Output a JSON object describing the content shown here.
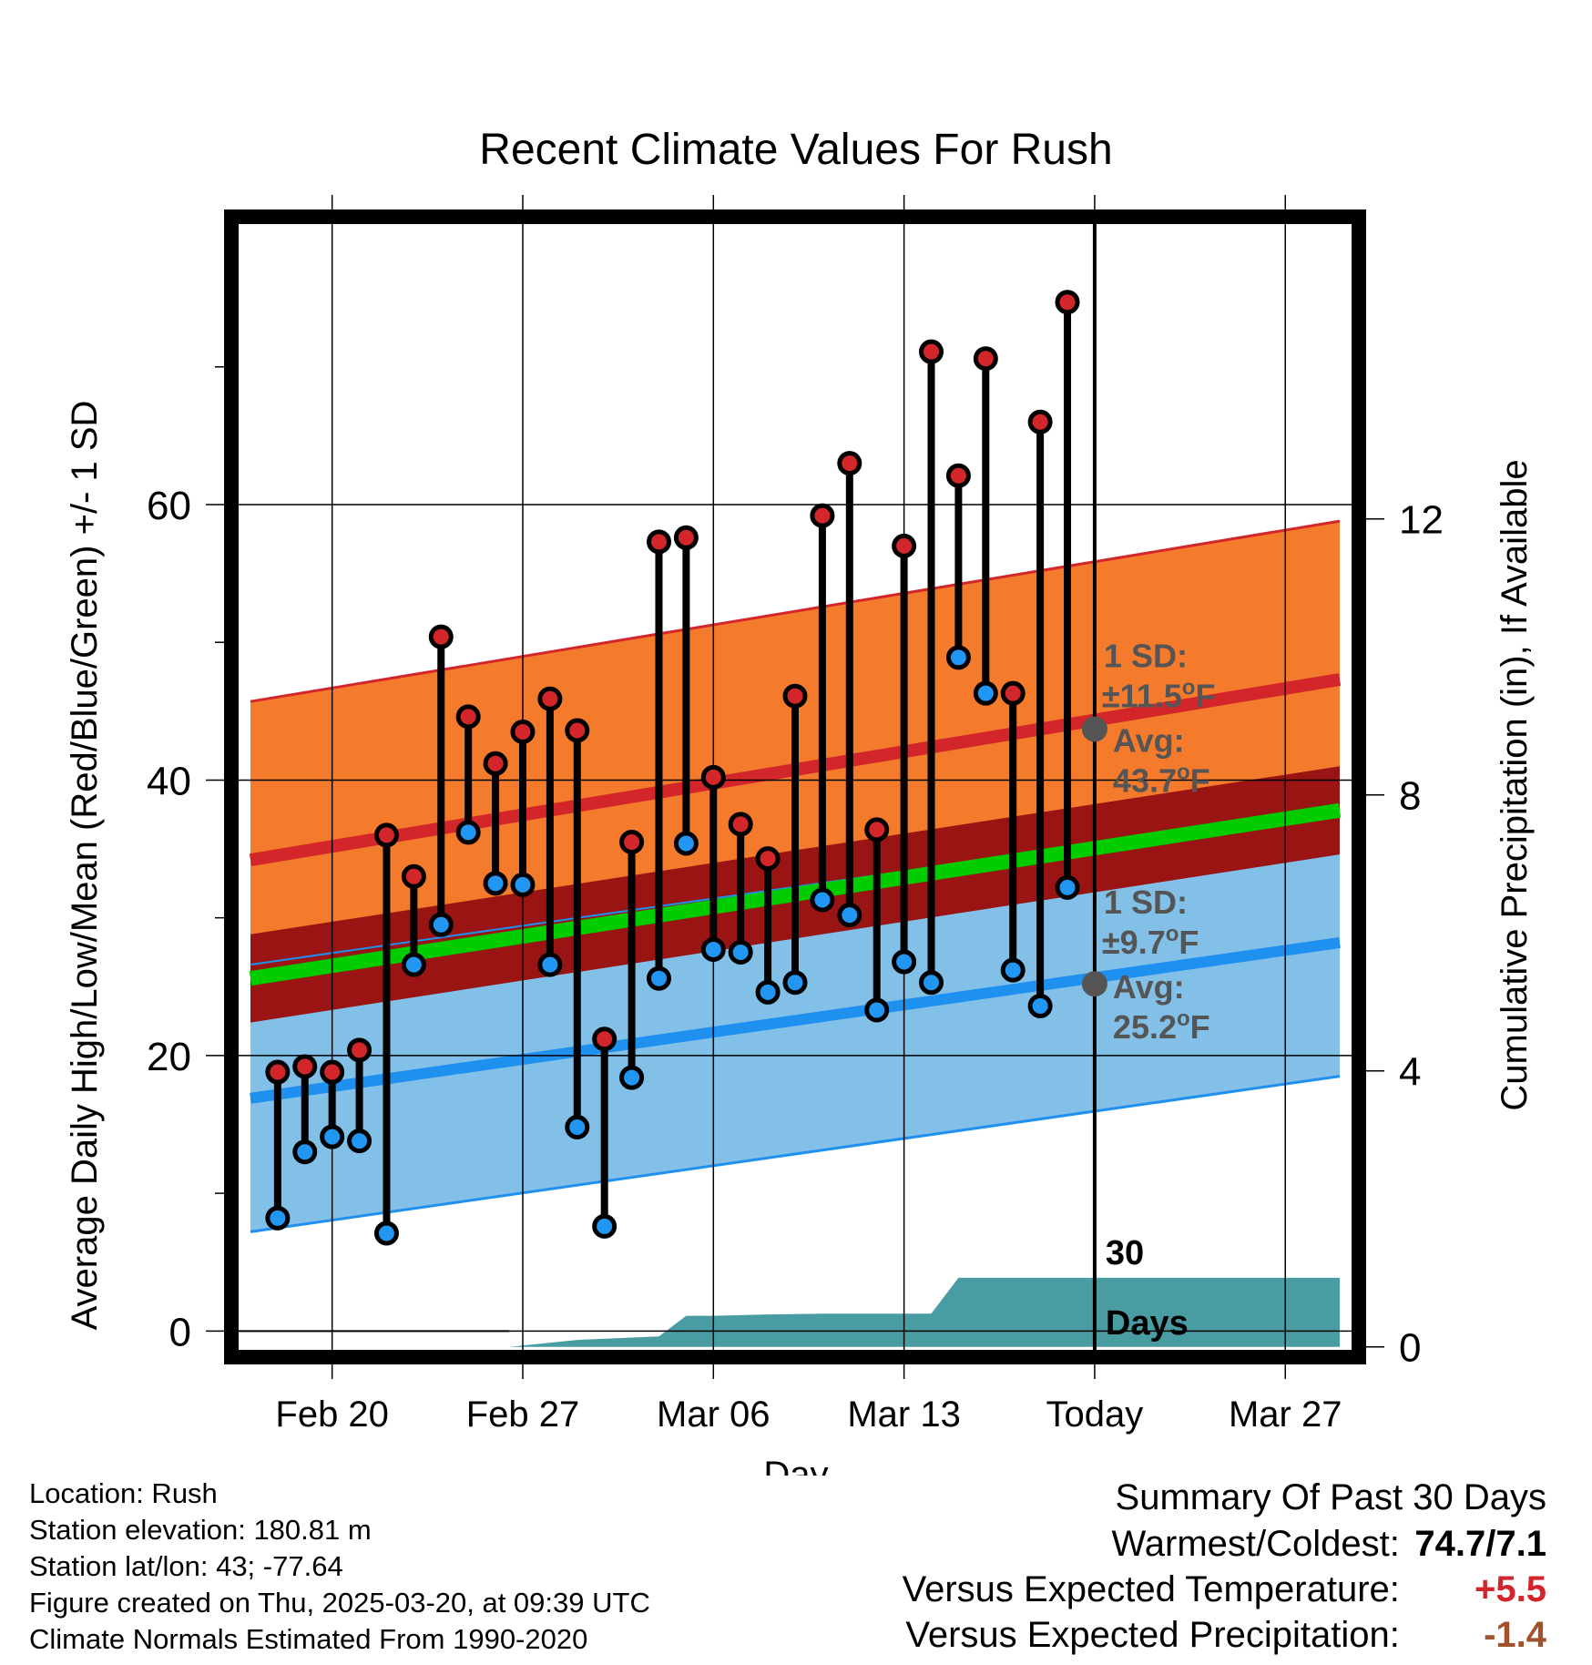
{
  "chart_data": {
    "type": "range",
    "title": "Recent Climate Values For Rush",
    "xlabel": "Day",
    "ylabel": "Average Daily High/Low/Mean (Red/Blue/Green) +/- 1 SD",
    "y2label": "Cumulative Precipitation (in), If Available",
    "xlim": [
      -3.5,
      37.5
    ],
    "ylim": [
      -1.5,
      80.5
    ],
    "y2lim": [
      -0.07,
      16.3
    ],
    "x_ticks": [
      {
        "x": 0,
        "label": "Feb 20"
      },
      {
        "x": 7,
        "label": "Feb 27"
      },
      {
        "x": 14,
        "label": "Mar 06"
      },
      {
        "x": 21,
        "label": "Mar 13"
      },
      {
        "x": 28,
        "label": "Today"
      },
      {
        "x": 35,
        "label": "Mar 27"
      }
    ],
    "y_ticks": [
      0,
      20,
      40,
      60
    ],
    "y_minor_ticks": [
      10,
      30,
      50,
      70
    ],
    "y2_ticks": [
      0,
      4,
      8,
      12
    ],
    "today_x": 28,
    "today_label": "30 Days",
    "colors": {
      "high_band": "#F47B2C",
      "high_line": "#D3262B",
      "low_band": "#82C0E8",
      "low_line": "#1E90F0",
      "mean_band": "#9A1414",
      "mean_line": "#00CC00",
      "precip": "#4A9CA3",
      "high_dot": "#D3262B",
      "low_dot": "#2196F3",
      "stat_dot": "#555555",
      "summary_warm": "#D3262B",
      "summary_precip": "#A0522D"
    },
    "normals": {
      "x": [
        -3,
        37
      ],
      "high_avg": [
        34.2,
        47.3
      ],
      "high_sd": 11.5,
      "low_avg": [
        16.9,
        28.2
      ],
      "low_sd": 9.7,
      "mean_avg": [
        25.6,
        37.8
      ],
      "mean_sd": 3.2
    },
    "high_stat": {
      "label1": "1 SD:",
      "label2": "±11.5",
      "unit": "F",
      "label3": "Avg:",
      "label4": "43.7",
      "value": 43.7,
      "sd": 11.5
    },
    "low_stat": {
      "label1": "1 SD:",
      "label2": "±9.7",
      "unit": "F",
      "label3": "Avg:",
      "label4": "25.2",
      "value": 25.2,
      "sd": 9.7
    },
    "degree_symbol": "o",
    "days": [
      {
        "x": -2,
        "high": 18.8,
        "low": 8.2
      },
      {
        "x": -1,
        "high": 19.2,
        "low": 13.0
      },
      {
        "x": 0,
        "high": 18.8,
        "low": 14.1
      },
      {
        "x": 1,
        "high": 20.4,
        "low": 13.8
      },
      {
        "x": 2,
        "high": 36.0,
        "low": 7.1
      },
      {
        "x": 3,
        "high": 33.0,
        "low": 26.6
      },
      {
        "x": 4,
        "high": 50.4,
        "low": 29.5
      },
      {
        "x": 5,
        "high": 44.6,
        "low": 36.2
      },
      {
        "x": 6,
        "high": 41.2,
        "low": 32.5
      },
      {
        "x": 7,
        "high": 43.5,
        "low": 32.4
      },
      {
        "x": 8,
        "high": 45.9,
        "low": 26.6
      },
      {
        "x": 9,
        "high": 43.6,
        "low": 14.8
      },
      {
        "x": 10,
        "high": 21.2,
        "low": 7.6
      },
      {
        "x": 11,
        "high": 35.5,
        "low": 18.4
      },
      {
        "x": 12,
        "high": 57.3,
        "low": 25.6
      },
      {
        "x": 13,
        "high": 57.6,
        "low": 35.4
      },
      {
        "x": 14,
        "high": 40.2,
        "low": 27.7
      },
      {
        "x": 15,
        "high": 36.8,
        "low": 27.5
      },
      {
        "x": 16,
        "high": 34.3,
        "low": 24.6
      },
      {
        "x": 17,
        "high": 46.1,
        "low": 25.3
      },
      {
        "x": 18,
        "high": 59.2,
        "low": 31.3
      },
      {
        "x": 19,
        "high": 63.0,
        "low": 30.2
      },
      {
        "x": 20,
        "high": 36.4,
        "low": 23.3
      },
      {
        "x": 21,
        "high": 57.0,
        "low": 26.8
      },
      {
        "x": 22,
        "high": 71.1,
        "low": 25.3
      },
      {
        "x": 23,
        "high": 62.1,
        "low": 48.9
      },
      {
        "x": 24,
        "high": 70.6,
        "low": 46.3
      },
      {
        "x": 25,
        "high": 46.3,
        "low": 26.2
      },
      {
        "x": 26,
        "high": 66.0,
        "low": 23.6
      },
      {
        "x": 27,
        "high": 74.7,
        "low": 32.2
      }
    ],
    "precip": {
      "x": [
        6.5,
        9,
        12,
        13,
        14,
        16,
        18,
        22,
        23,
        37
      ],
      "values": [
        0.0,
        0.1,
        0.15,
        0.45,
        0.45,
        0.47,
        0.48,
        0.48,
        1.0,
        1.0
      ]
    }
  },
  "footer": {
    "location": "Location: Rush",
    "elevation": "Station elevation: 180.81 m",
    "latlon": "Station lat/lon: 43; -77.64",
    "created": "Figure created on Thu, 2025-03-20, at 09:39 UTC",
    "normals": "Climate Normals Estimated From 1990-2020"
  },
  "summary": {
    "heading": "Summary Of Past 30 Days",
    "warm_cold_label": "Warmest/Coldest:",
    "warm_cold_value": "74.7/7.1",
    "temp_label": "Versus Expected Temperature:",
    "temp_value": "+5.5",
    "precip_label": "Versus Expected Precipitation:",
    "precip_value": "-1.4"
  }
}
